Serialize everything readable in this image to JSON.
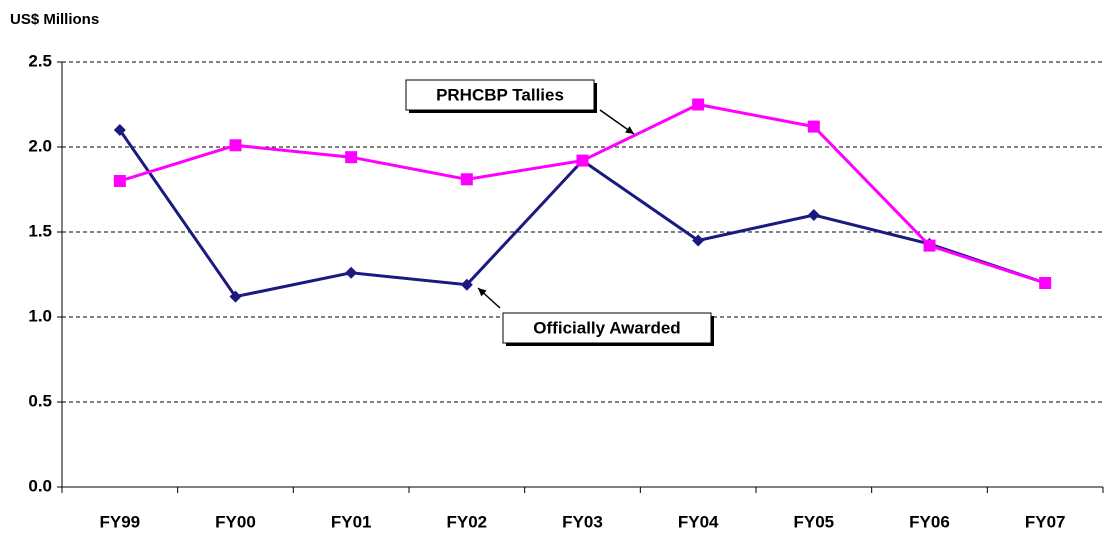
{
  "chart_data": {
    "type": "line",
    "y_label": "US$ Millions",
    "categories": [
      "FY99",
      "FY00",
      "FY01",
      "FY02",
      "FY03",
      "FY04",
      "FY05",
      "FY06",
      "FY07"
    ],
    "series": [
      {
        "name": "Officially Awarded",
        "color": "#1a1a80",
        "marker": "diamond",
        "values": [
          2.1,
          1.12,
          1.26,
          1.19,
          1.92,
          1.45,
          1.6,
          1.43,
          1.2
        ]
      },
      {
        "name": "PRHCBP Tallies",
        "color": "#ff00ff",
        "marker": "square",
        "values": [
          1.8,
          2.01,
          1.94,
          1.81,
          1.92,
          2.25,
          2.12,
          1.42,
          1.2
        ]
      }
    ],
    "ylim": [
      0,
      2.5
    ],
    "yticks": [
      {
        "value": 0,
        "label": "0.0"
      },
      0.5,
      {
        "value": 1,
        "label": "1.0"
      },
      1.5,
      {
        "value": 2,
        "label": "2.0"
      },
      2.5
    ],
    "grid": true
  }
}
